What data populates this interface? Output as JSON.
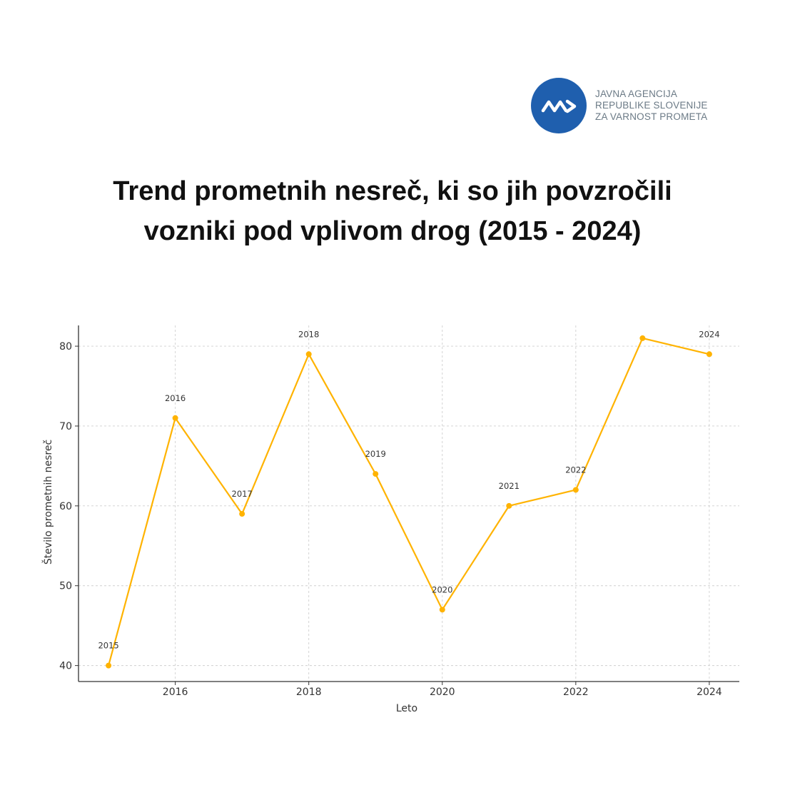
{
  "logo": {
    "icon": "av-arrow-icon",
    "brand_color": "#1f5fae",
    "lines": [
      "JAVNA AGENCIJA",
      "REPUBLIKE SLOVENIJE",
      "ZA VARNOST PROMETA"
    ]
  },
  "title": {
    "line1": "Trend prometnih nesreč, ki so jih povzročili",
    "line2": "vozniki pod vplivom drog (2015 - 2024)"
  },
  "chart_data": {
    "type": "line",
    "x": [
      2015,
      2016,
      2017,
      2018,
      2019,
      2020,
      2021,
      2022,
      2023,
      2024
    ],
    "values": [
      40,
      71,
      59,
      79,
      64,
      47,
      60,
      62,
      81,
      79
    ],
    "point_labels": [
      "2015",
      "2016",
      "2017",
      "2018",
      "2019",
      "2020",
      "2021",
      "2022",
      "",
      "2024"
    ],
    "xlabel": "Leto",
    "ylabel": "Število prometnih nesreč",
    "x_ticks": [
      2016,
      2018,
      2020,
      2022,
      2024
    ],
    "y_ticks": [
      40,
      50,
      60,
      70,
      80
    ],
    "xlim": [
      2014.55,
      2024.45
    ],
    "ylim": [
      38,
      82.6
    ],
    "grid": true,
    "line_color": "#FFB300"
  }
}
